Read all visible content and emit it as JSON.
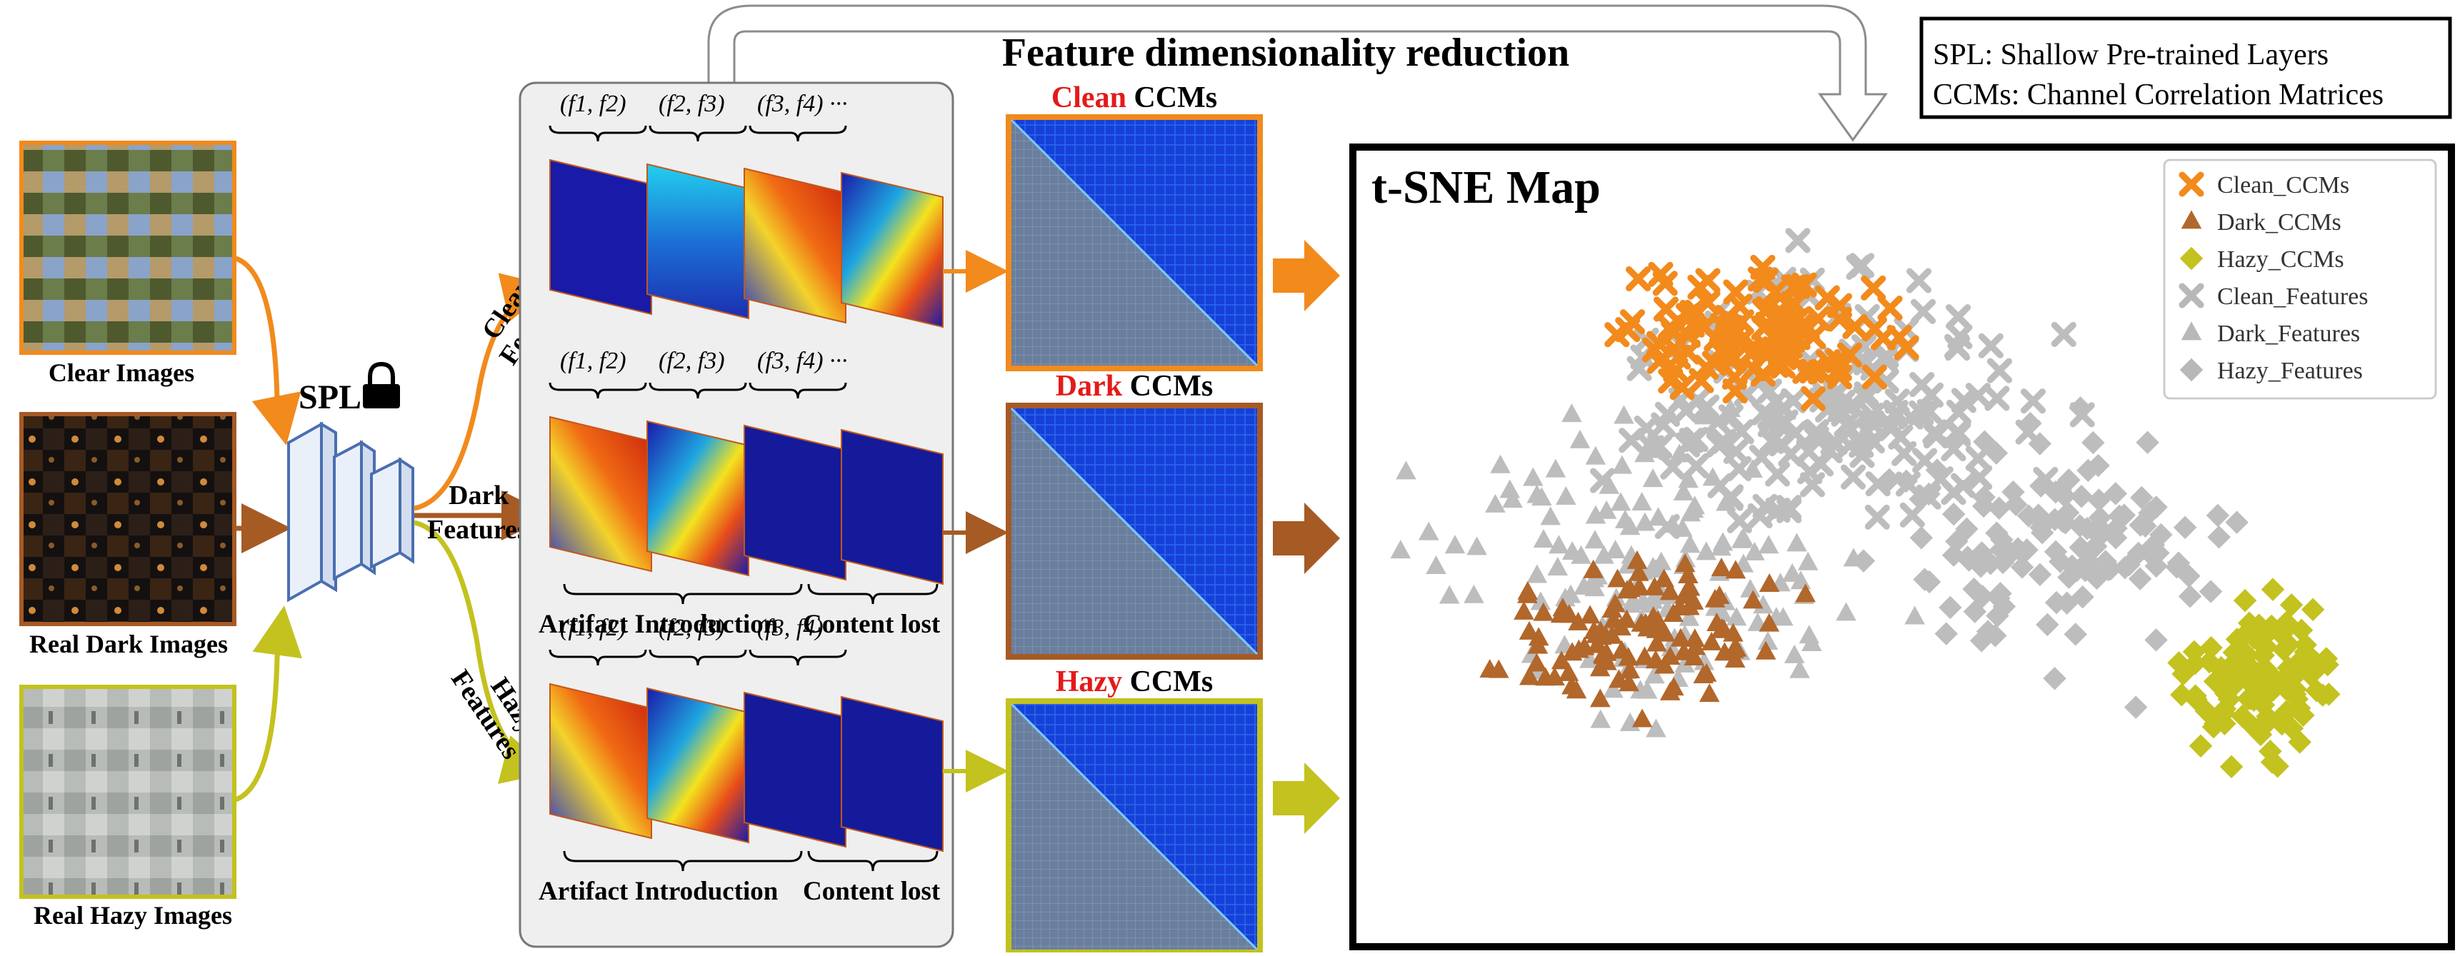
{
  "header": {
    "arrow_label": "Feature dimensionality reduction",
    "legend_box": [
      "SPL: Shallow Pre-trained Layers",
      "CCMs: Channel Correlation Matrices"
    ]
  },
  "inputs": [
    {
      "label": "Clear Images",
      "color": "#f28a1c"
    },
    {
      "label": "Real Dark Images",
      "color": "#a65a24"
    },
    {
      "label": "Real Hazy Images",
      "color": "#c3c21f"
    }
  ],
  "spl": {
    "label": "SPL",
    "icon": "lock-icon"
  },
  "branch_labels": {
    "clear": [
      "Clear",
      "Features"
    ],
    "dark": [
      "Dark",
      "Features"
    ],
    "hazy": [
      "Hazy",
      "Features"
    ]
  },
  "feature_panel": {
    "pairs": [
      "(f1, f2)",
      "(f2, f3)",
      "(f3, f4) ···"
    ],
    "artifact_label": "Artifact Introduction",
    "content_label": "Content lost"
  },
  "ccms": [
    {
      "key": "Clean",
      "suffix": " CCMs",
      "border": "#f28a1c"
    },
    {
      "key": "Dark",
      "suffix": " CCMs",
      "border": "#a65a24"
    },
    {
      "key": "Hazy",
      "suffix": " CCMs",
      "border": "#c3c21f"
    }
  ],
  "tsne": {
    "title": "t-SNE Map",
    "legend": [
      {
        "label": "Clean_CCMs",
        "marker": "x",
        "color": "#f28a1c"
      },
      {
        "label": "Dark_CCMs",
        "marker": "triangle",
        "color": "#b2672b"
      },
      {
        "label": "Hazy_CCMs",
        "marker": "diamond",
        "color": "#c3c21f"
      },
      {
        "label": "Clean_Features",
        "marker": "x",
        "color": "#b8b8b8"
      },
      {
        "label": "Dark_Features",
        "marker": "triangle",
        "color": "#b8b8b8"
      },
      {
        "label": "Hazy_Features",
        "marker": "diamond",
        "color": "#b8b8b8"
      }
    ]
  }
}
